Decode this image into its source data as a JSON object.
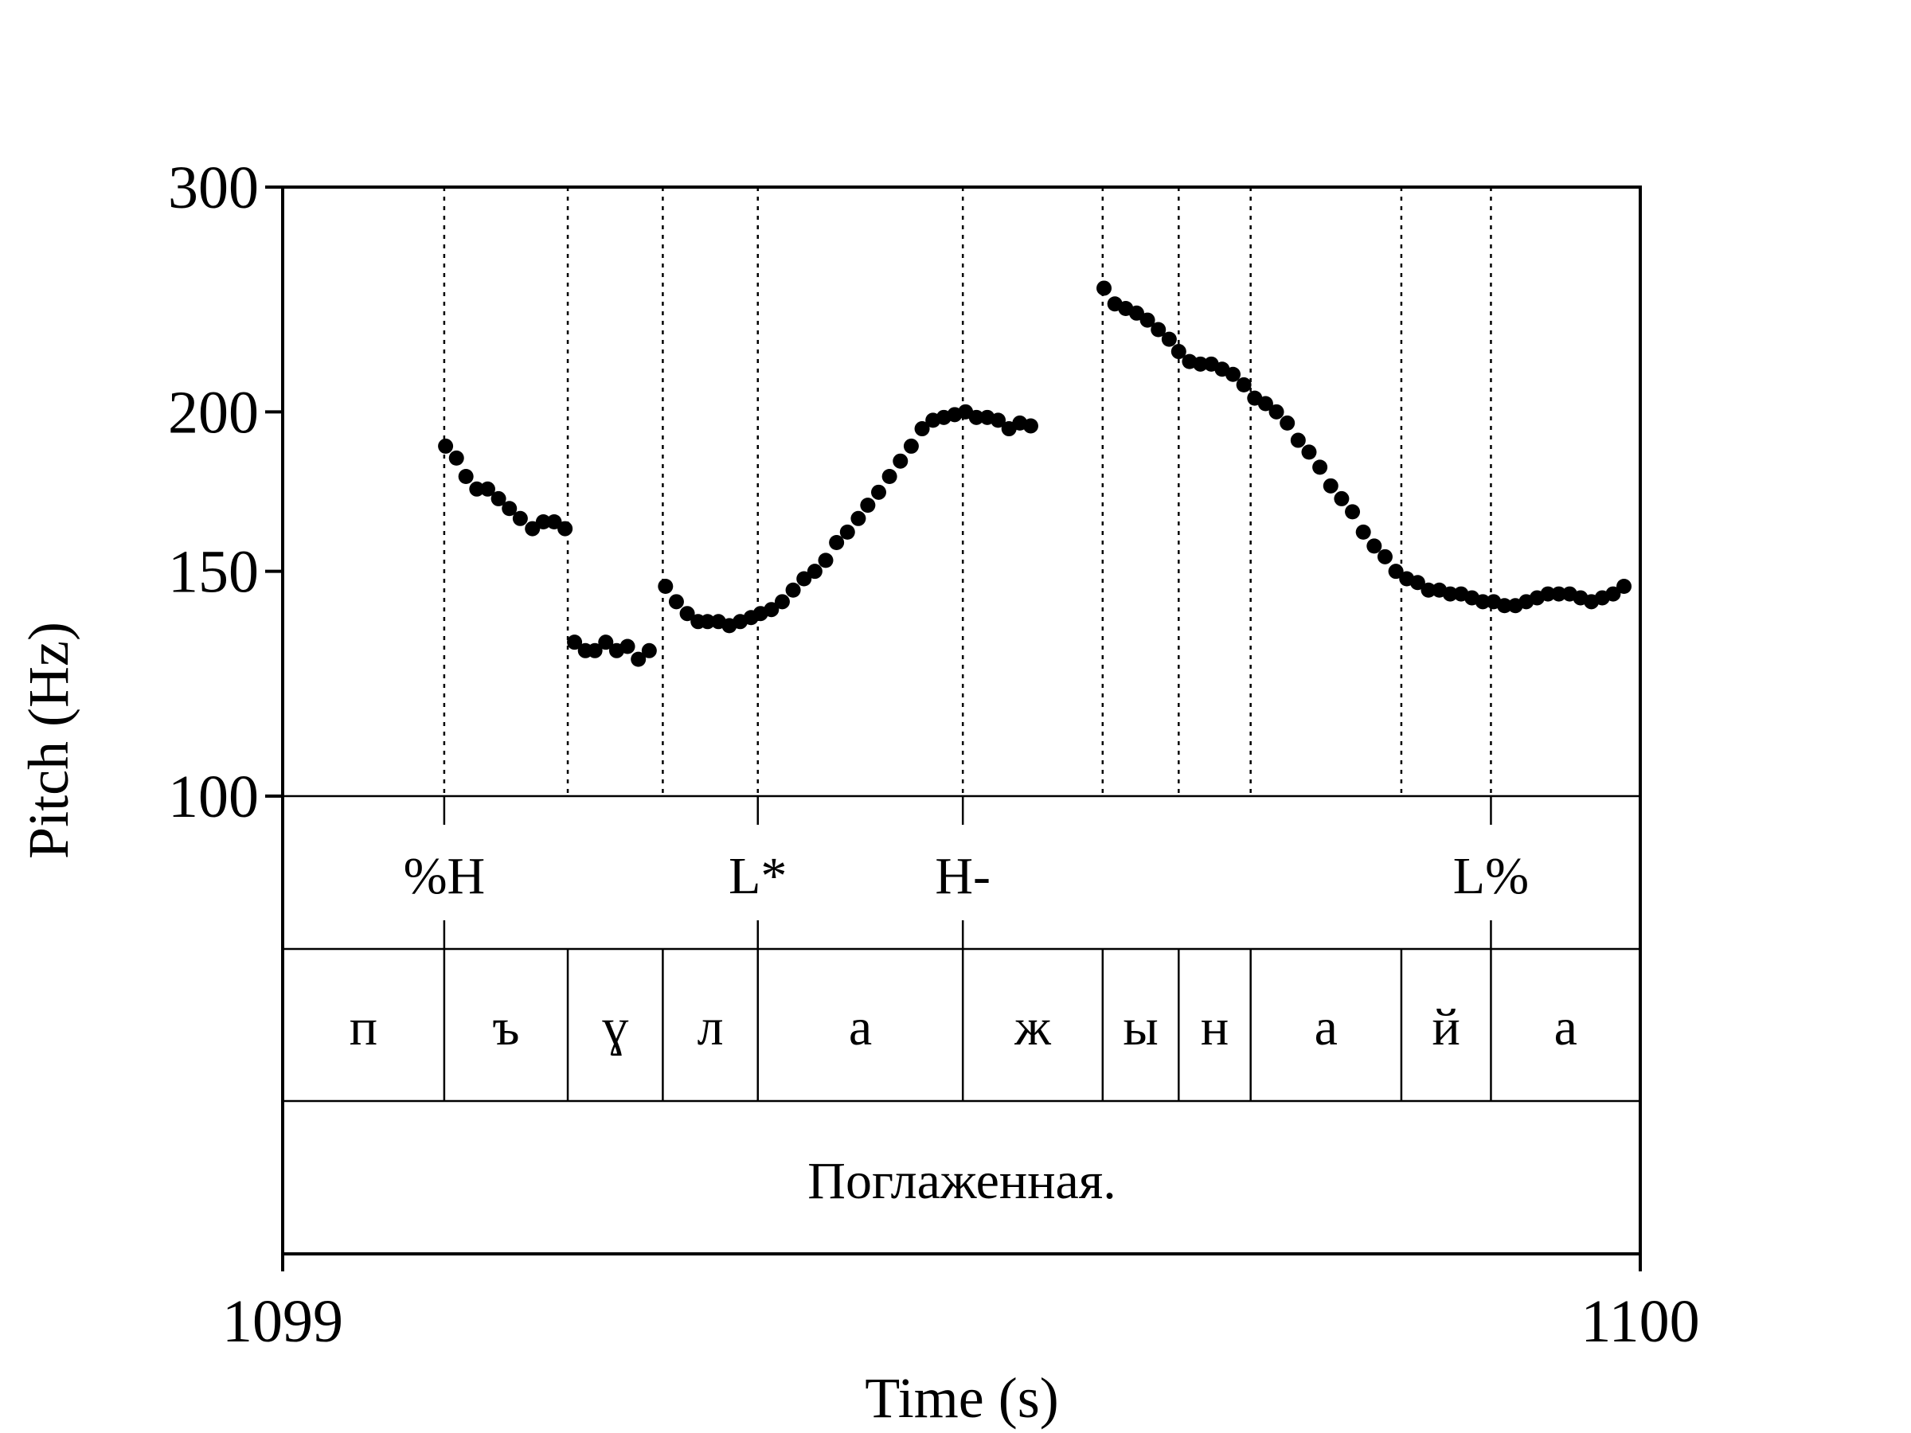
{
  "chart_data": {
    "type": "scatter",
    "xlabel": "Time (s)",
    "ylabel": "Pitch (Hz)",
    "xlim": [
      1099,
      1100
    ],
    "ylim": [
      100,
      300
    ],
    "y_scale": "log",
    "x_ticks": [
      1099,
      1100
    ],
    "x_tick_labels": [
      "1099",
      "1100"
    ],
    "y_ticks": [
      100,
      150,
      200,
      300
    ],
    "y_tick_labels": [
      "100",
      "150",
      "200",
      "300"
    ],
    "grid": false,
    "legend": "none",
    "point_color": "#000000",
    "tones": [
      {
        "label": "%H",
        "t": 1099.119
      },
      {
        "label": "L*",
        "t": 1099.35
      },
      {
        "label": "H-",
        "t": 1099.501
      },
      {
        "label": "L%",
        "t": 1099.89
      }
    ],
    "segments": [
      {
        "label": "п",
        "start": 1099.0,
        "end": 1099.119
      },
      {
        "label": "ъ",
        "start": 1099.119,
        "end": 1099.21
      },
      {
        "label": "ɣ",
        "start": 1099.21,
        "end": 1099.28
      },
      {
        "label": "л",
        "start": 1099.28,
        "end": 1099.35
      },
      {
        "label": "а",
        "start": 1099.35,
        "end": 1099.501
      },
      {
        "label": "ж",
        "start": 1099.501,
        "end": 1099.604
      },
      {
        "label": "ы",
        "start": 1099.604,
        "end": 1099.66
      },
      {
        "label": "н",
        "start": 1099.66,
        "end": 1099.713
      },
      {
        "label": "а",
        "start": 1099.713,
        "end": 1099.824
      },
      {
        "label": "й",
        "start": 1099.824,
        "end": 1099.89
      },
      {
        "label": "а",
        "start": 1099.89,
        "end": 1100.0
      }
    ],
    "sentence": "Поглаженная.",
    "series": [
      {
        "points": [
          [
            1099.12,
            188
          ],
          [
            1099.128,
            184
          ],
          [
            1099.135,
            178
          ],
          [
            1099.143,
            174
          ],
          [
            1099.151,
            174
          ],
          [
            1099.159,
            171
          ],
          [
            1099.167,
            168
          ],
          [
            1099.175,
            165
          ],
          [
            1099.184,
            162
          ],
          [
            1099.192,
            164
          ],
          [
            1099.2,
            164
          ],
          [
            1099.208,
            162
          ],
          [
            1099.215,
            132
          ],
          [
            1099.223,
            130
          ],
          [
            1099.23,
            130
          ],
          [
            1099.238,
            132
          ],
          [
            1099.246,
            130
          ],
          [
            1099.254,
            131
          ],
          [
            1099.262,
            128
          ],
          [
            1099.27,
            130
          ],
          [
            1099.282,
            146
          ],
          [
            1099.29,
            142
          ],
          [
            1099.298,
            139
          ],
          [
            1099.306,
            137
          ],
          [
            1099.313,
            137
          ],
          [
            1099.321,
            137
          ],
          [
            1099.329,
            136
          ],
          [
            1099.337,
            137
          ],
          [
            1099.345,
            138
          ],
          [
            1099.352,
            139
          ],
          [
            1099.36,
            140
          ],
          [
            1099.368,
            142
          ],
          [
            1099.376,
            145
          ],
          [
            1099.384,
            148
          ],
          [
            1099.392,
            150
          ],
          [
            1099.4,
            153
          ],
          [
            1099.408,
            158
          ],
          [
            1099.416,
            161
          ],
          [
            1099.424,
            165
          ],
          [
            1099.431,
            169
          ],
          [
            1099.439,
            173
          ],
          [
            1099.447,
            178
          ],
          [
            1099.455,
            183
          ],
          [
            1099.463,
            188
          ],
          [
            1099.471,
            194
          ],
          [
            1099.479,
            197
          ],
          [
            1099.487,
            198
          ],
          [
            1099.495,
            199
          ],
          [
            1099.503,
            200
          ],
          [
            1099.511,
            198
          ],
          [
            1099.519,
            198
          ],
          [
            1099.527,
            197
          ],
          [
            1099.535,
            194
          ],
          [
            1099.543,
            196
          ],
          [
            1099.551,
            195
          ],
          [
            1099.605,
            250
          ],
          [
            1099.613,
            243
          ],
          [
            1099.621,
            241
          ],
          [
            1099.629,
            239
          ],
          [
            1099.637,
            236
          ],
          [
            1099.645,
            232
          ],
          [
            1099.653,
            228
          ],
          [
            1099.66,
            223
          ],
          [
            1099.668,
            219
          ],
          [
            1099.676,
            218
          ],
          [
            1099.684,
            218
          ],
          [
            1099.692,
            216
          ],
          [
            1099.7,
            214
          ],
          [
            1099.708,
            210
          ],
          [
            1099.716,
            205
          ],
          [
            1099.724,
            203
          ],
          [
            1099.732,
            200
          ],
          [
            1099.74,
            196
          ],
          [
            1099.748,
            190
          ],
          [
            1099.756,
            186
          ],
          [
            1099.764,
            181
          ],
          [
            1099.772,
            175
          ],
          [
            1099.78,
            171
          ],
          [
            1099.788,
            167
          ],
          [
            1099.796,
            161
          ],
          [
            1099.804,
            157
          ],
          [
            1099.812,
            154
          ],
          [
            1099.82,
            150
          ],
          [
            1099.828,
            148
          ],
          [
            1099.836,
            147
          ],
          [
            1099.844,
            145
          ],
          [
            1099.852,
            145
          ],
          [
            1099.86,
            144
          ],
          [
            1099.868,
            144
          ],
          [
            1099.876,
            143
          ],
          [
            1099.884,
            142
          ],
          [
            1099.892,
            142
          ],
          [
            1099.9,
            141
          ],
          [
            1099.908,
            141
          ],
          [
            1099.916,
            142
          ],
          [
            1099.924,
            143
          ],
          [
            1099.932,
            144
          ],
          [
            1099.94,
            144
          ],
          [
            1099.948,
            144
          ],
          [
            1099.956,
            143
          ],
          [
            1099.964,
            142
          ],
          [
            1099.972,
            143
          ],
          [
            1099.98,
            144
          ],
          [
            1099.988,
            146
          ]
        ]
      }
    ]
  }
}
